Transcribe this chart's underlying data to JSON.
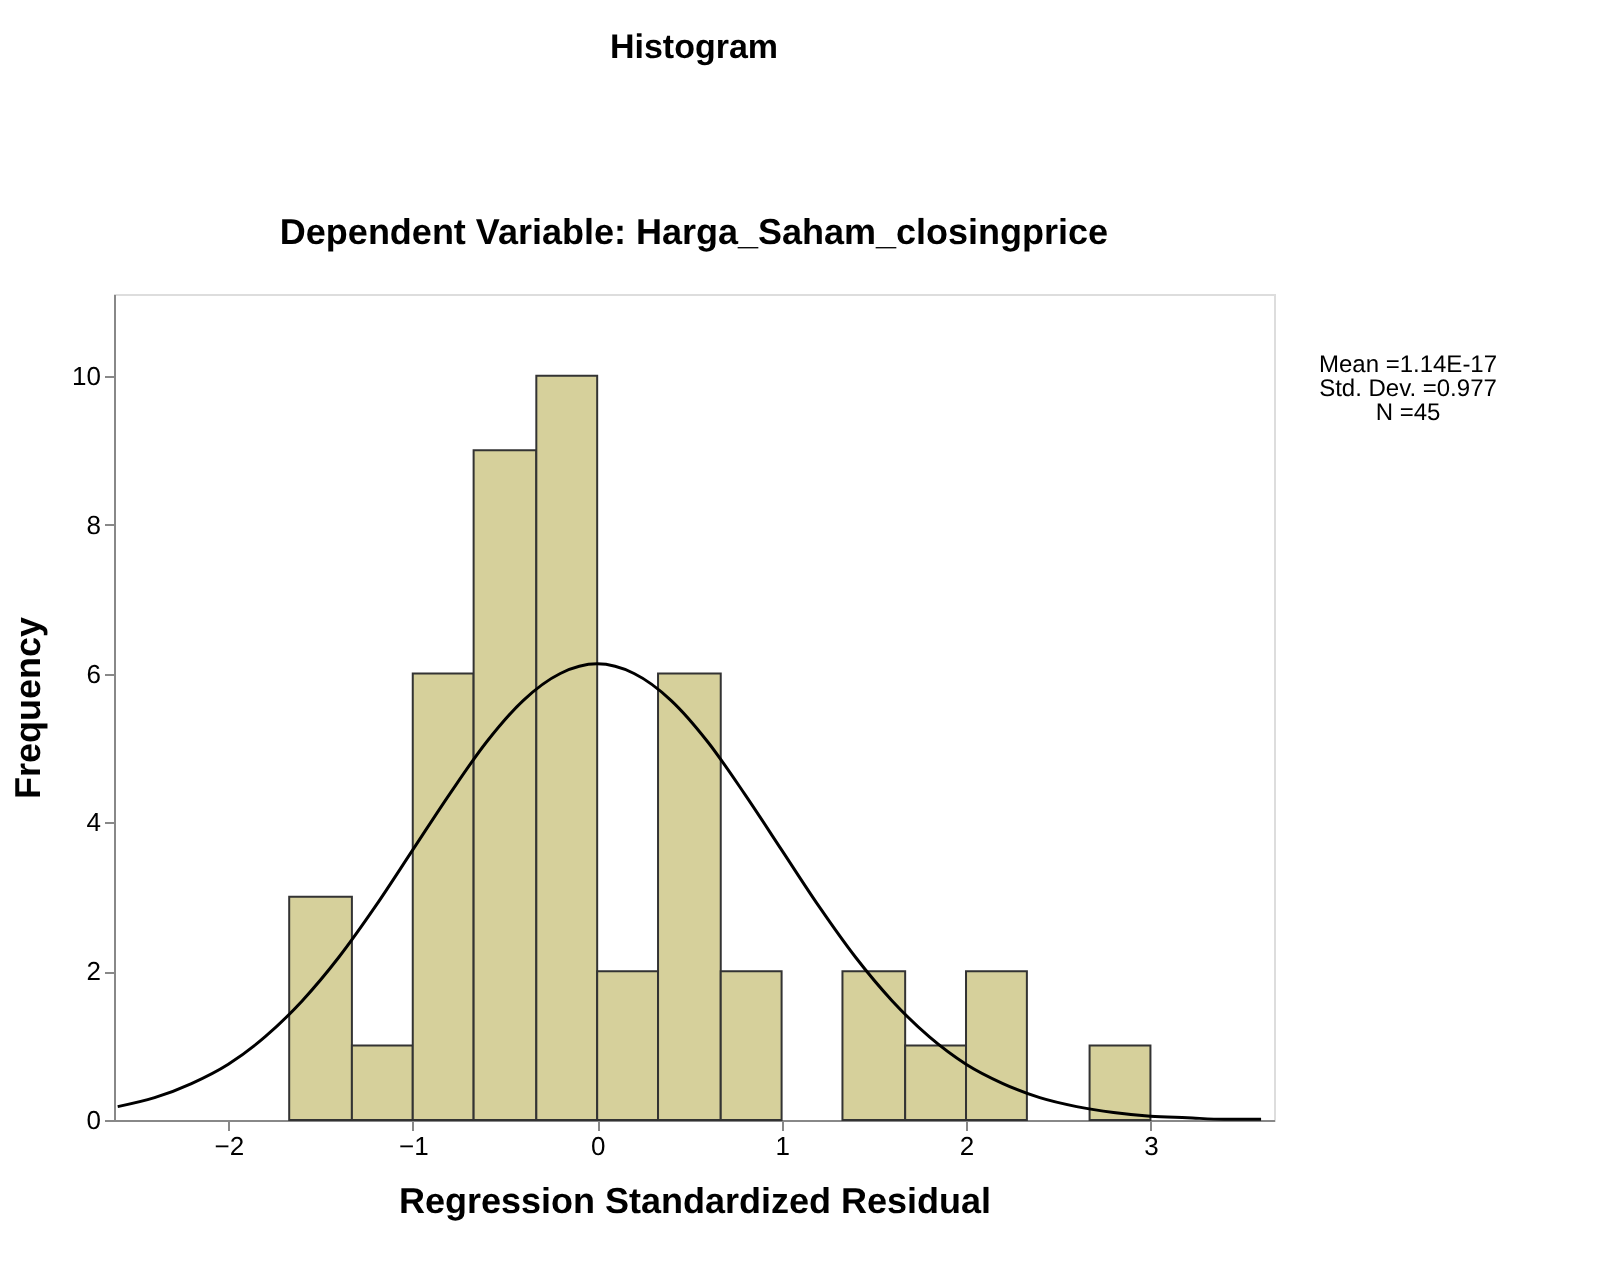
{
  "chart_data": {
    "type": "histogram",
    "title": "Histogram",
    "subtitle": "Dependent Variable: Harga_Saham_closingprice",
    "xlabel": "Regression Standardized Residual",
    "ylabel": "Frequency",
    "bins": [
      -1.67,
      -1.33,
      -1,
      -0.67,
      -0.33,
      0,
      0.33,
      0.67,
      1,
      1.33,
      1.67,
      2,
      2.33,
      2.67,
      3
    ],
    "values": [
      3,
      1,
      6,
      9,
      10,
      2,
      6,
      2,
      0,
      2,
      1,
      2,
      0,
      1
    ],
    "color": "#d6d09b",
    "series": [
      {
        "type": "line",
        "color": "#000000",
        "x": [
          -2.6,
          -2.4,
          -2.2,
          -2.0,
          -1.8,
          -1.6,
          -1.4,
          -1.2,
          -1.0,
          -0.8,
          -0.6,
          -0.4,
          -0.2,
          0,
          0.2,
          0.4,
          0.6,
          0.8,
          1.0,
          1.2,
          1.4,
          1.6,
          1.8,
          2.0,
          2.2,
          2.4,
          2.6,
          2.8,
          3.0,
          3.2,
          3.4,
          3.6
        ],
        "values": [
          0.18,
          0.3,
          0.49,
          0.75,
          1.12,
          1.6,
          2.19,
          2.88,
          3.63,
          4.38,
          5.08,
          5.64,
          6.0,
          6.13,
          6.0,
          5.64,
          5.08,
          4.38,
          3.63,
          2.88,
          2.19,
          1.6,
          1.12,
          0.75,
          0.49,
          0.3,
          0.18,
          0.1,
          0.05,
          0.03,
          0.01,
          0.01
        ]
      }
    ],
    "xlim": [
      -2.62,
      3.67
    ],
    "xticks": [
      -2,
      -1,
      0,
      1,
      2,
      3
    ],
    "ylim": [
      0,
      11.1
    ],
    "yticks": [
      0,
      2,
      4,
      6,
      8,
      10
    ],
    "grid": false,
    "annotations": [
      "Mean =1.14E-17",
      "Std. Dev. =0.977",
      "N =45"
    ]
  }
}
